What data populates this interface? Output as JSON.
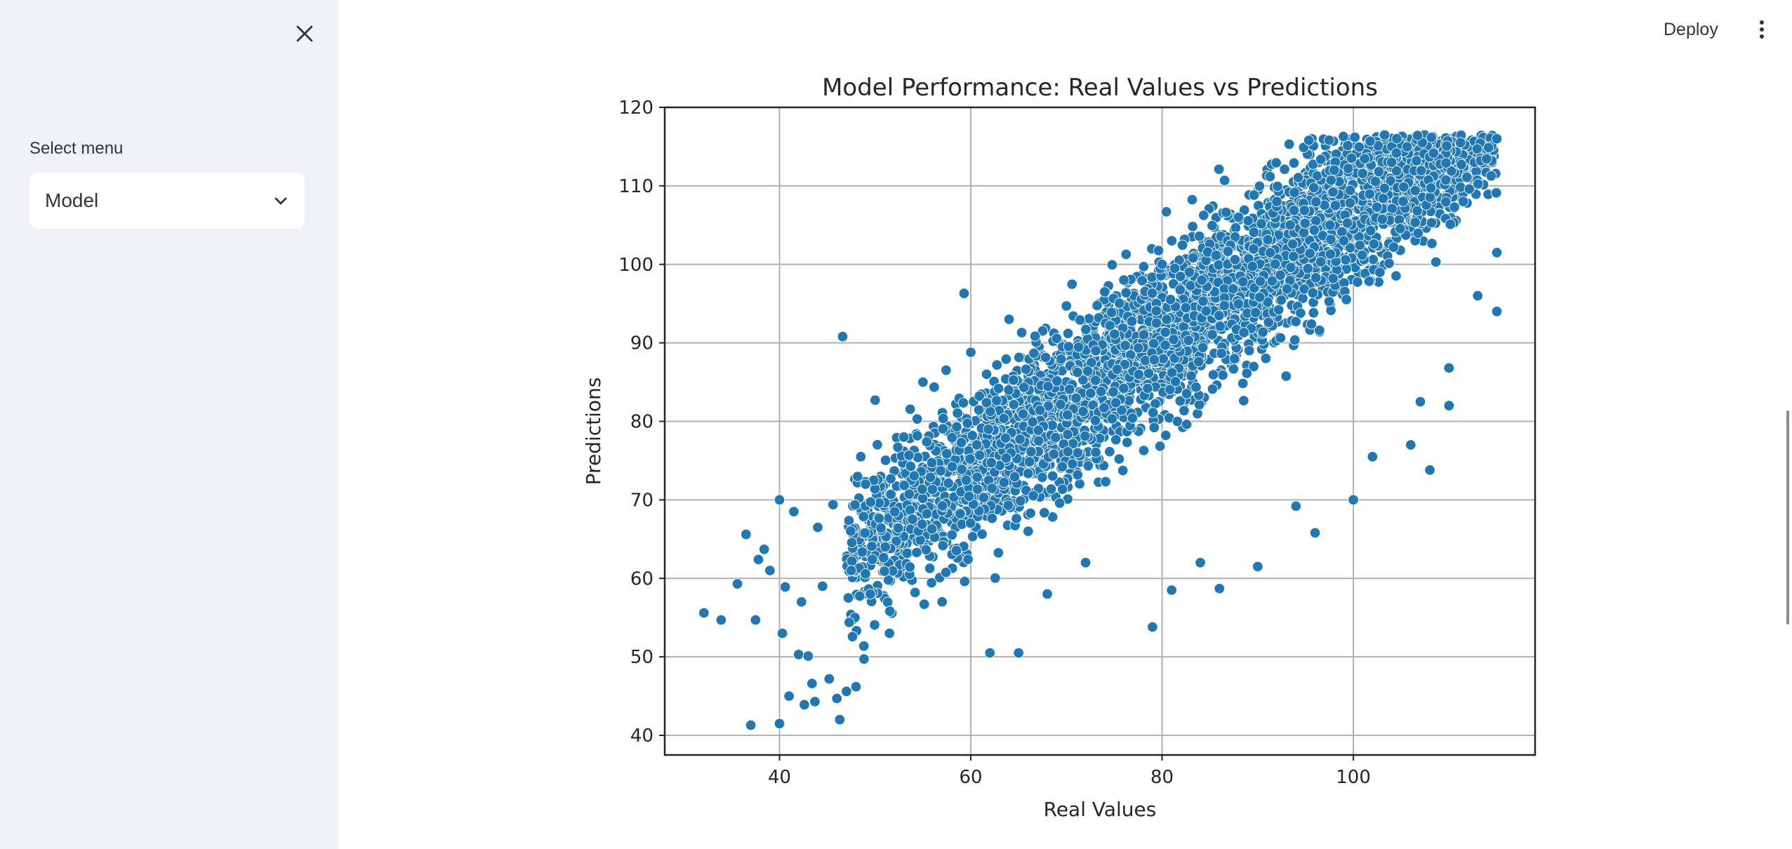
{
  "sidebar": {
    "select_label": "Select menu",
    "select_value": "Model",
    "close_icon": "close-icon",
    "chevron_icon": "chevron-down-icon"
  },
  "header": {
    "deploy_label": "Deploy",
    "menu_icon": "vertical-dots-icon"
  },
  "chart_data": {
    "type": "scatter",
    "title": "Model Performance: Real Values vs Predictions",
    "xlabel": "Real Values",
    "ylabel": "Predictions",
    "xlim": [
      28,
      119
    ],
    "ylim": [
      37.5,
      120
    ],
    "xticks": [
      40,
      60,
      80,
      100
    ],
    "yticks": [
      40,
      50,
      60,
      70,
      80,
      90,
      100,
      110,
      120
    ],
    "grid": true,
    "color": "#1f77b4",
    "points": [
      [
        32.1,
        55.6
      ],
      [
        33.9,
        54.7
      ],
      [
        35.6,
        59.3
      ],
      [
        36.5,
        65.6
      ],
      [
        37.0,
        41.3
      ],
      [
        37.5,
        54.7
      ],
      [
        37.8,
        62.4
      ],
      [
        38.4,
        63.7
      ],
      [
        39.0,
        61.0
      ],
      [
        40.0,
        70.0
      ],
      [
        40.0,
        41.5
      ],
      [
        40.3,
        53.0
      ],
      [
        40.6,
        58.9
      ],
      [
        41.0,
        45.0
      ],
      [
        41.5,
        68.5
      ],
      [
        42.0,
        50.3
      ],
      [
        42.3,
        57.0
      ],
      [
        42.6,
        43.9
      ],
      [
        43.0,
        50.1
      ],
      [
        43.4,
        46.6
      ],
      [
        43.7,
        44.3
      ],
      [
        44.0,
        66.5
      ],
      [
        44.5,
        59.0
      ],
      [
        45.2,
        47.2
      ],
      [
        45.6,
        69.4
      ],
      [
        46.0,
        44.7
      ],
      [
        46.3,
        42.0
      ],
      [
        46.6,
        90.8
      ],
      [
        47.0,
        45.6
      ],
      [
        47.5,
        61.0
      ],
      [
        48.0,
        46.2
      ],
      [
        48.5,
        75.5
      ],
      [
        49.0,
        72.0
      ],
      [
        49.5,
        58.0
      ],
      [
        50.0,
        82.7
      ],
      [
        51.5,
        53.0
      ],
      [
        53.0,
        78.0
      ],
      [
        55.0,
        85.0
      ],
      [
        57.0,
        57.0
      ],
      [
        59.3,
        96.3
      ],
      [
        60.0,
        88.8
      ],
      [
        62.0,
        50.5
      ],
      [
        64.0,
        93.0
      ],
      [
        65.0,
        50.5
      ],
      [
        66.0,
        66.0
      ],
      [
        68.0,
        58.0
      ],
      [
        70.0,
        94.7
      ],
      [
        72.0,
        62.0
      ],
      [
        74.0,
        96.5
      ],
      [
        76.0,
        98.0
      ],
      [
        79.0,
        53.8
      ],
      [
        80.0,
        100.0
      ],
      [
        81.0,
        58.5
      ],
      [
        84.0,
        62.0
      ],
      [
        86.0,
        58.7
      ],
      [
        88.0,
        106.0
      ],
      [
        90.0,
        61.5
      ],
      [
        92.0,
        108.0
      ],
      [
        94.0,
        69.2
      ],
      [
        96.0,
        65.8
      ],
      [
        98.0,
        112.0
      ],
      [
        100.0,
        70.0
      ],
      [
        102.0,
        75.5
      ],
      [
        104.0,
        113.0
      ],
      [
        106.0,
        77.0
      ],
      [
        107.0,
        82.5
      ],
      [
        108.0,
        73.8
      ],
      [
        110.0,
        82.0
      ],
      [
        110.0,
        86.8
      ],
      [
        113.0,
        96.0
      ],
      [
        115.0,
        101.5
      ],
      [
        115.0,
        94.0
      ],
      [
        115.0,
        116.0
      ]
    ]
  }
}
